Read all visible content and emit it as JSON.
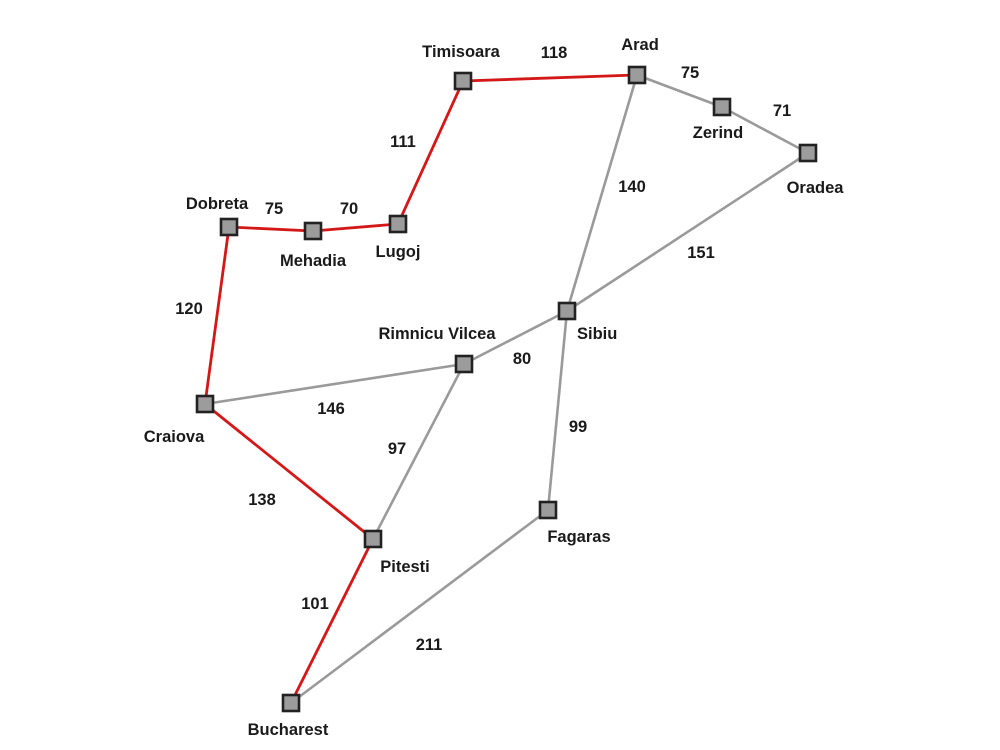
{
  "colors": {
    "path_highlight": "#d41818",
    "edge_default": "#9a9a9a",
    "node_fill": "#9c9c9c",
    "node_border": "#222222"
  },
  "cities": [
    {
      "id": "timisoara",
      "name": "Timisoara"
    },
    {
      "id": "arad",
      "name": "Arad"
    },
    {
      "id": "zerind",
      "name": "Zerind"
    },
    {
      "id": "oradea",
      "name": "Oradea"
    },
    {
      "id": "lugoj",
      "name": "Lugoj"
    },
    {
      "id": "mehadia",
      "name": "Mehadia"
    },
    {
      "id": "dobreta",
      "name": "Dobreta"
    },
    {
      "id": "sibiu",
      "name": "Sibiu"
    },
    {
      "id": "rimnicu",
      "name": "Rimnicu Vilcea"
    },
    {
      "id": "craiova",
      "name": "Craiova"
    },
    {
      "id": "pitesti",
      "name": "Pitesti"
    },
    {
      "id": "fagaras",
      "name": "Fagaras"
    },
    {
      "id": "bucharest",
      "name": "Bucharest"
    }
  ],
  "roads": [
    {
      "from": "timisoara",
      "to": "arad",
      "distance": "118",
      "highlighted": true
    },
    {
      "from": "arad",
      "to": "zerind",
      "distance": "75",
      "highlighted": false
    },
    {
      "from": "zerind",
      "to": "oradea",
      "distance": "71",
      "highlighted": false
    },
    {
      "from": "arad",
      "to": "sibiu",
      "distance": "140",
      "highlighted": false
    },
    {
      "from": "oradea",
      "to": "sibiu",
      "distance": "151",
      "highlighted": false
    },
    {
      "from": "timisoara",
      "to": "lugoj",
      "distance": "111",
      "highlighted": true
    },
    {
      "from": "lugoj",
      "to": "mehadia",
      "distance": "70",
      "highlighted": true
    },
    {
      "from": "mehadia",
      "to": "dobreta",
      "distance": "75",
      "highlighted": true
    },
    {
      "from": "dobreta",
      "to": "craiova",
      "distance": "120",
      "highlighted": true
    },
    {
      "from": "sibiu",
      "to": "rimnicu",
      "distance": "80",
      "highlighted": false
    },
    {
      "from": "sibiu",
      "to": "fagaras",
      "distance": "99",
      "highlighted": false
    },
    {
      "from": "rimnicu",
      "to": "craiova",
      "distance": "146",
      "highlighted": false
    },
    {
      "from": "rimnicu",
      "to": "pitesti",
      "distance": "97",
      "highlighted": false
    },
    {
      "from": "craiova",
      "to": "pitesti",
      "distance": "138",
      "highlighted": true
    },
    {
      "from": "pitesti",
      "to": "bucharest",
      "distance": "101",
      "highlighted": true
    },
    {
      "from": "fagaras",
      "to": "bucharest",
      "distance": "211",
      "highlighted": false
    }
  ]
}
